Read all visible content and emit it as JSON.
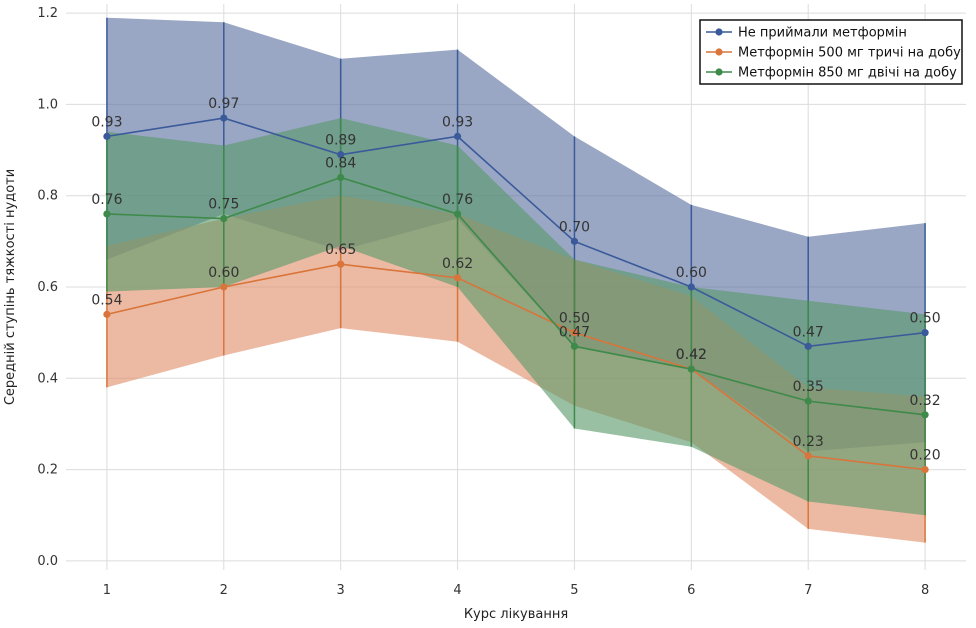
{
  "chart_data": {
    "type": "line",
    "title": "",
    "xlabel": "Курс лікування",
    "ylabel": "Середній ступінь тяжкості нудоти",
    "x": [
      1,
      2,
      3,
      4,
      5,
      6,
      7,
      8
    ],
    "xlim": [
      0.65,
      8.35
    ],
    "ylim": [
      -0.02,
      1.22
    ],
    "yticks": [
      0.0,
      0.2,
      0.4,
      0.6,
      0.8,
      1.0,
      1.2
    ],
    "ytick_labels": [
      "0.0",
      "0.2",
      "0.4",
      "0.6",
      "0.8",
      "1.0",
      "1.2"
    ],
    "xtick_labels": [
      "1",
      "2",
      "3",
      "4",
      "5",
      "6",
      "7",
      "8"
    ],
    "grid": true,
    "legend_position": "top-right",
    "series": [
      {
        "name": "Не приймали метформін",
        "color": "#3a5a9a",
        "fill_color": "#5a719f",
        "values": [
          0.93,
          0.97,
          0.89,
          0.93,
          0.7,
          0.6,
          0.47,
          0.5
        ],
        "value_labels": [
          "0.93",
          "0.97",
          "0.89",
          "0.93",
          "0.70",
          "0.60",
          "0.47",
          "0.50"
        ],
        "lower": [
          0.66,
          0.76,
          0.68,
          0.75,
          0.47,
          0.42,
          0.24,
          0.26
        ],
        "upper": [
          1.19,
          1.18,
          1.1,
          1.12,
          0.93,
          0.78,
          0.71,
          0.74
        ]
      },
      {
        "name": "Метформін 500 мг тричі на добу",
        "color": "#d9743a",
        "fill_color": "#e0906a",
        "values": [
          0.54,
          0.6,
          0.65,
          0.62,
          0.5,
          0.42,
          0.23,
          0.2
        ],
        "value_labels": [
          "0.54",
          "0.60",
          "0.65",
          "0.62",
          "0.50",
          "0.42",
          "0.23",
          "0.20"
        ],
        "lower": [
          0.38,
          0.45,
          0.51,
          0.48,
          0.34,
          0.26,
          0.07,
          0.04
        ],
        "upper": [
          0.69,
          0.75,
          0.8,
          0.76,
          0.66,
          0.58,
          0.38,
          0.36
        ]
      },
      {
        "name": "Метформін 850 мг двічі на добу",
        "color": "#3d8a4a",
        "fill_color": "#5a9a6a",
        "values": [
          0.76,
          0.75,
          0.84,
          0.76,
          0.47,
          0.42,
          0.35,
          0.32
        ],
        "value_labels": [
          "0.76",
          "0.75",
          "0.84",
          "0.76",
          "0.47",
          "0.42",
          "0.35",
          "0.32"
        ],
        "lower": [
          0.59,
          0.6,
          0.69,
          0.6,
          0.29,
          0.25,
          0.13,
          0.1
        ],
        "upper": [
          0.94,
          0.91,
          0.97,
          0.91,
          0.66,
          0.6,
          0.57,
          0.54
        ]
      }
    ]
  }
}
